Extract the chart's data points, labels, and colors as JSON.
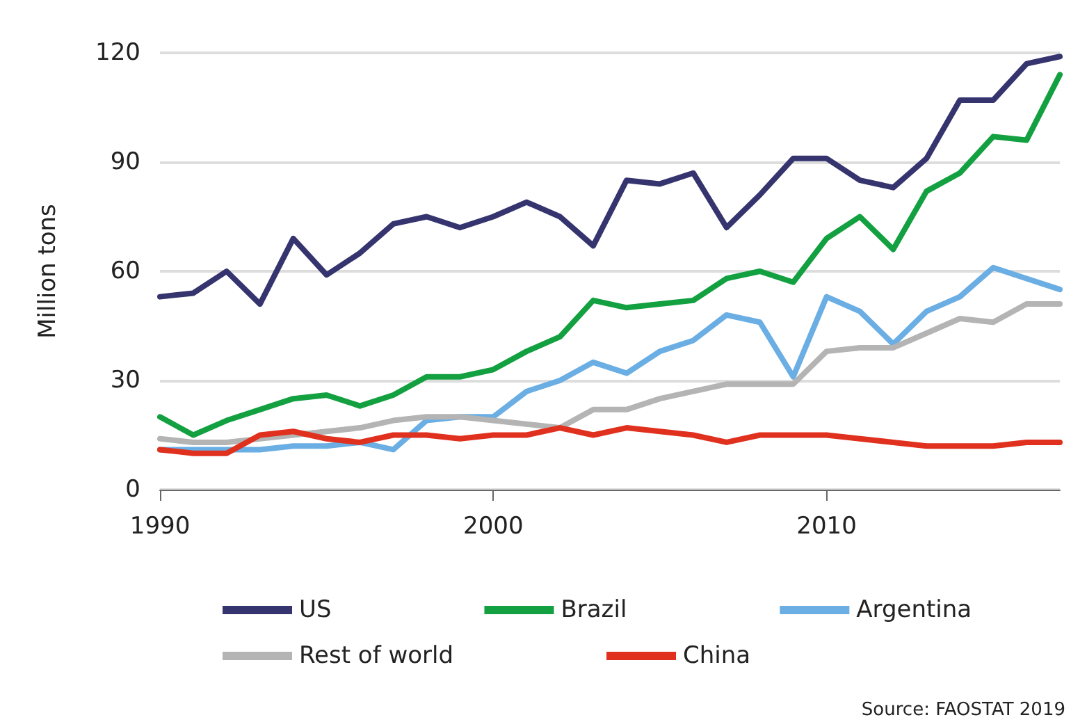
{
  "chart_data": {
    "type": "line",
    "ylabel": "Million tons",
    "x": [
      1990,
      1991,
      1992,
      1993,
      1994,
      1995,
      1996,
      1997,
      1998,
      1999,
      2000,
      2001,
      2002,
      2003,
      2004,
      2005,
      2006,
      2007,
      2008,
      2009,
      2010,
      2011,
      2012,
      2013,
      2014,
      2015,
      2016,
      2017
    ],
    "series": [
      {
        "name": "US",
        "color": "#35346e",
        "values": [
          53,
          54,
          60,
          51,
          69,
          59,
          65,
          73,
          75,
          72,
          75,
          79,
          75,
          67,
          85,
          84,
          87,
          72,
          81,
          91,
          91,
          85,
          83,
          91,
          107,
          107,
          117,
          119
        ]
      },
      {
        "name": "Brazil",
        "color": "#13a040",
        "values": [
          20,
          15,
          19,
          22,
          25,
          26,
          23,
          26,
          31,
          31,
          33,
          38,
          42,
          52,
          50,
          51,
          52,
          58,
          60,
          57,
          69,
          75,
          66,
          82,
          87,
          97,
          96,
          114
        ]
      },
      {
        "name": "Argentina",
        "color": "#6aaee4",
        "values": [
          11,
          11,
          11,
          11,
          12,
          12,
          13,
          11,
          19,
          20,
          20,
          27,
          30,
          35,
          32,
          38,
          41,
          48,
          46,
          31,
          53,
          49,
          40,
          49,
          53,
          61,
          58,
          55
        ]
      },
      {
        "name": "Rest of world",
        "color": "#b4b4b4",
        "values": [
          14,
          13,
          13,
          14,
          15,
          16,
          17,
          19,
          20,
          20,
          19,
          18,
          17,
          22,
          22,
          25,
          27,
          29,
          29,
          29,
          38,
          39,
          39,
          43,
          47,
          46,
          51,
          51
        ]
      },
      {
        "name": "China",
        "color": "#e0301e",
        "values": [
          11,
          10,
          10,
          15,
          16,
          14,
          13,
          15,
          15,
          14,
          15,
          15,
          17,
          15,
          17,
          16,
          15,
          13,
          15,
          15,
          15,
          14,
          13,
          12,
          12,
          12,
          13,
          13
        ]
      }
    ],
    "xlim": [
      1990,
      2017
    ],
    "xticks": [
      1990,
      2000,
      2010
    ],
    "ylim": [
      0,
      120
    ],
    "yticks": [
      0,
      30,
      60,
      90,
      120
    ],
    "grid": "y",
    "legend": "bottom",
    "marker": "none",
    "line_style": "solid",
    "annotations": [
      "Source: FAOSTAT 2019"
    ]
  }
}
